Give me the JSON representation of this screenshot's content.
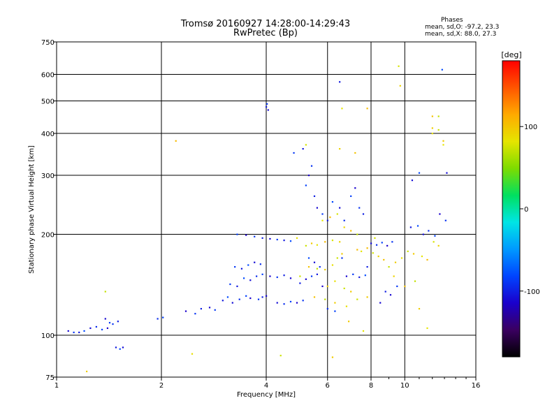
{
  "header": {
    "title_line1": "Tromsø 20160927 14:28:00-14:29:43",
    "title_line2": "RwPretec (Bp)",
    "phase_heading": "Phases",
    "phase_o": "mean, sd,O: -97.2, 23.3",
    "phase_x": "mean, sd,X:  88.0, 27.3"
  },
  "chart_data": {
    "type": "scatter",
    "xlabel": "Frequency [MHz]",
    "ylabel": "Stationary phase Virtual Height [km]",
    "xscale": "log",
    "yscale": "log",
    "xlim": [
      1,
      16
    ],
    "ylim": [
      75,
      750
    ],
    "xticks": [
      1,
      2,
      4,
      6,
      8,
      10,
      16
    ],
    "xminor": [
      9,
      11,
      12,
      13,
      14,
      15
    ],
    "yticks": [
      75,
      100,
      200,
      300,
      400,
      500,
      600,
      750
    ],
    "grid": true,
    "colorbar": {
      "label": "[deg]",
      "range": [
        -180,
        180
      ],
      "ticks": [
        100,
        0,
        -100
      ],
      "colors": [
        "#000000",
        "#3a0060",
        "#1a00cc",
        "#0044ff",
        "#0099ff",
        "#00e5e5",
        "#00e060",
        "#7ddc00",
        "#e5e500",
        "#ffaa00",
        "#ff5500",
        "#ff0000"
      ]
    },
    "series": [
      {
        "mode": "O",
        "points": [
          [
            1.08,
            103
          ],
          [
            1.12,
            102
          ],
          [
            1.16,
            102
          ],
          [
            1.2,
            103
          ],
          [
            1.25,
            105
          ],
          [
            1.3,
            106
          ],
          [
            1.35,
            104
          ],
          [
            1.4,
            105
          ],
          [
            1.45,
            108
          ],
          [
            1.5,
            110
          ],
          [
            1.38,
            112
          ],
          [
            1.42,
            109
          ],
          [
            1.48,
            92
          ],
          [
            1.52,
            91
          ],
          [
            1.55,
            92
          ],
          [
            1.95,
            112
          ],
          [
            2.02,
            113
          ],
          [
            2.35,
            118
          ],
          [
            2.5,
            116
          ],
          [
            2.6,
            120
          ],
          [
            2.75,
            121
          ],
          [
            2.85,
            119
          ],
          [
            3.0,
            127
          ],
          [
            3.1,
            130
          ],
          [
            3.2,
            125
          ],
          [
            3.35,
            128
          ],
          [
            3.5,
            131
          ],
          [
            3.6,
            129
          ],
          [
            3.8,
            128
          ],
          [
            3.9,
            130
          ],
          [
            4.0,
            131
          ],
          [
            3.15,
            142
          ],
          [
            3.3,
            140
          ],
          [
            3.45,
            148
          ],
          [
            3.6,
            146
          ],
          [
            3.75,
            150
          ],
          [
            3.9,
            152
          ],
          [
            4.1,
            150
          ],
          [
            4.3,
            149
          ],
          [
            4.5,
            151
          ],
          [
            4.7,
            148
          ],
          [
            3.25,
            160
          ],
          [
            3.4,
            158
          ],
          [
            3.55,
            162
          ],
          [
            3.7,
            165
          ],
          [
            3.85,
            163
          ],
          [
            3.3,
            200
          ],
          [
            3.5,
            199
          ],
          [
            3.7,
            197
          ],
          [
            3.9,
            195
          ],
          [
            4.1,
            194
          ],
          [
            4.3,
            193
          ],
          [
            4.5,
            192
          ],
          [
            4.7,
            191
          ],
          [
            4.3,
            125
          ],
          [
            4.5,
            124
          ],
          [
            4.7,
            126
          ],
          [
            4.9,
            125
          ],
          [
            5.1,
            127
          ],
          [
            5.0,
            143
          ],
          [
            5.2,
            147
          ],
          [
            5.4,
            150
          ],
          [
            5.6,
            152
          ],
          [
            5.3,
            170
          ],
          [
            5.5,
            165
          ],
          [
            5.7,
            160
          ],
          [
            5.2,
            280
          ],
          [
            5.3,
            300
          ],
          [
            5.4,
            320
          ],
          [
            5.5,
            260
          ],
          [
            5.6,
            240
          ],
          [
            5.8,
            230
          ],
          [
            6.0,
            220
          ],
          [
            6.2,
            250
          ],
          [
            6.5,
            240
          ],
          [
            6.7,
            220
          ],
          [
            7.0,
            260
          ],
          [
            7.2,
            275
          ],
          [
            7.4,
            240
          ],
          [
            7.6,
            230
          ],
          [
            6.8,
            150
          ],
          [
            7.1,
            152
          ],
          [
            7.4,
            149
          ],
          [
            7.7,
            151
          ],
          [
            8.0,
            188
          ],
          [
            8.3,
            186
          ],
          [
            8.6,
            189
          ],
          [
            8.9,
            185
          ],
          [
            9.2,
            190
          ],
          [
            8.8,
            135
          ],
          [
            9.1,
            132
          ],
          [
            9.5,
            140
          ],
          [
            10.4,
            210
          ],
          [
            10.9,
            212
          ],
          [
            11.3,
            200
          ],
          [
            11.7,
            205
          ],
          [
            12.2,
            198
          ],
          [
            12.6,
            230
          ],
          [
            13.1,
            220
          ],
          [
            4.0,
            480
          ],
          [
            4.05,
            470
          ],
          [
            4.02,
            490
          ],
          [
            6.5,
            570
          ],
          [
            11.0,
            305
          ],
          [
            13.2,
            305
          ],
          [
            6.0,
            120
          ],
          [
            6.3,
            118
          ],
          [
            5.8,
            140
          ],
          [
            6.6,
            170
          ],
          [
            7.8,
            160
          ],
          [
            8.5,
            125
          ],
          [
            4.8,
            350
          ],
          [
            5.1,
            360
          ],
          [
            12.8,
            620
          ],
          [
            10.5,
            290
          ]
        ]
      },
      {
        "mode": "X",
        "points": [
          [
            5.2,
            185
          ],
          [
            5.4,
            188
          ],
          [
            5.6,
            186
          ],
          [
            5.9,
            190
          ],
          [
            6.2,
            192
          ],
          [
            6.5,
            190
          ],
          [
            5.3,
            160
          ],
          [
            5.6,
            158
          ],
          [
            5.9,
            157
          ],
          [
            6.2,
            162
          ],
          [
            6.4,
            170
          ],
          [
            6.6,
            175
          ],
          [
            5.8,
            220
          ],
          [
            6.1,
            225
          ],
          [
            6.4,
            230
          ],
          [
            6.7,
            210
          ],
          [
            7.0,
            205
          ],
          [
            7.3,
            200
          ],
          [
            6.0,
            140
          ],
          [
            6.3,
            145
          ],
          [
            6.7,
            138
          ],
          [
            7.0,
            135
          ],
          [
            7.5,
            178
          ],
          [
            7.8,
            182
          ],
          [
            8.1,
            176
          ],
          [
            8.4,
            172
          ],
          [
            8.7,
            168
          ],
          [
            9.0,
            160
          ],
          [
            9.4,
            165
          ],
          [
            9.8,
            170
          ],
          [
            10.2,
            178
          ],
          [
            10.6,
            175
          ],
          [
            11.2,
            172
          ],
          [
            11.6,
            168
          ],
          [
            12.1,
            190
          ],
          [
            12.5,
            185
          ],
          [
            5.5,
            130
          ],
          [
            5.9,
            128
          ],
          [
            6.3,
            125
          ],
          [
            6.8,
            122
          ],
          [
            7.3,
            128
          ],
          [
            7.8,
            130
          ],
          [
            6.6,
            475
          ],
          [
            7.8,
            475
          ],
          [
            9.6,
            635
          ],
          [
            9.7,
            555
          ],
          [
            12.0,
            450
          ],
          [
            12.5,
            450
          ],
          [
            12.0,
            415
          ],
          [
            12.0,
            400
          ],
          [
            12.5,
            410
          ],
          [
            12.9,
            380
          ],
          [
            12.9,
            370
          ],
          [
            2.2,
            380
          ],
          [
            5.2,
            370
          ],
          [
            6.5,
            360
          ],
          [
            7.2,
            350
          ],
          [
            1.38,
            135
          ],
          [
            1.22,
            78
          ],
          [
            2.45,
            88
          ],
          [
            4.4,
            87
          ],
          [
            6.2,
            86
          ],
          [
            11.6,
            105
          ],
          [
            7.3,
            180
          ],
          [
            8.2,
            195
          ],
          [
            9.3,
            150
          ],
          [
            10.0,
            140
          ],
          [
            10.7,
            145
          ],
          [
            11.0,
            120
          ],
          [
            4.9,
            195
          ],
          [
            5.0,
            150
          ],
          [
            6.9,
            110
          ],
          [
            7.6,
            103
          ]
        ]
      }
    ]
  }
}
